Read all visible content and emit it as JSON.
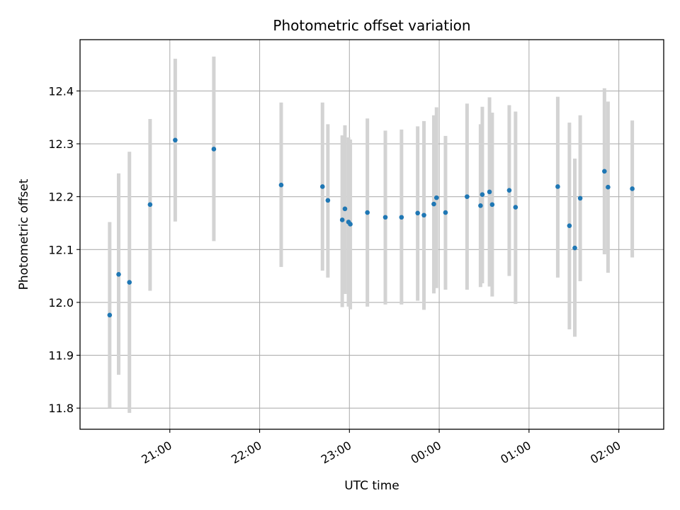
{
  "chart_data": {
    "type": "scatter",
    "title": "Photometric offset variation",
    "xlabel": "UTC time",
    "ylabel": "Photometric offset",
    "x_unit": "UTC hours (values beyond 24 are after midnight)",
    "xlim": [
      20.0,
      26.5
    ],
    "ylim": [
      11.76,
      12.497
    ],
    "grid": true,
    "x_ticks": [
      {
        "value": 21,
        "label": "21:00"
      },
      {
        "value": 22,
        "label": "22:00"
      },
      {
        "value": 23,
        "label": "23:00"
      },
      {
        "value": 24,
        "label": "00:00"
      },
      {
        "value": 25,
        "label": "01:00"
      },
      {
        "value": 26,
        "label": "02:00"
      }
    ],
    "y_ticks": [
      {
        "value": 11.8,
        "label": "11.8"
      },
      {
        "value": 11.9,
        "label": "11.9"
      },
      {
        "value": 12.0,
        "label": "12.0"
      },
      {
        "value": 12.1,
        "label": "12.1"
      },
      {
        "value": 12.2,
        "label": "12.2"
      },
      {
        "value": 12.3,
        "label": "12.3"
      },
      {
        "value": 12.4,
        "label": "12.4"
      }
    ],
    "colors": {
      "point": "#1f77b4",
      "errorbar": "#d3d3d3",
      "grid": "#b0b0b0"
    },
    "series": [
      {
        "points": [
          {
            "x": 20.33,
            "y": 11.976,
            "lo": 11.8,
            "hi": 12.152
          },
          {
            "x": 20.43,
            "y": 12.053,
            "lo": 11.863,
            "hi": 12.244
          },
          {
            "x": 20.55,
            "y": 12.038,
            "lo": 11.791,
            "hi": 12.285
          },
          {
            "x": 20.78,
            "y": 12.185,
            "lo": 12.022,
            "hi": 12.347
          },
          {
            "x": 21.06,
            "y": 12.307,
            "lo": 12.153,
            "hi": 12.461
          },
          {
            "x": 21.49,
            "y": 12.29,
            "lo": 12.116,
            "hi": 12.465
          },
          {
            "x": 22.24,
            "y": 12.222,
            "lo": 12.067,
            "hi": 12.378
          },
          {
            "x": 22.7,
            "y": 12.219,
            "lo": 12.06,
            "hi": 12.378
          },
          {
            "x": 22.76,
            "y": 12.193,
            "lo": 12.047,
            "hi": 12.337
          },
          {
            "x": 22.92,
            "y": 12.156,
            "lo": 11.991,
            "hi": 12.316
          },
          {
            "x": 22.95,
            "y": 12.177,
            "lo": 12.016,
            "hi": 12.335
          },
          {
            "x": 22.99,
            "y": 12.152,
            "lo": 11.992,
            "hi": 12.312
          },
          {
            "x": 23.01,
            "y": 12.148,
            "lo": 11.987,
            "hi": 12.308
          },
          {
            "x": 23.2,
            "y": 12.17,
            "lo": 11.992,
            "hi": 12.348
          },
          {
            "x": 23.4,
            "y": 12.161,
            "lo": 11.996,
            "hi": 12.325
          },
          {
            "x": 23.58,
            "y": 12.161,
            "lo": 11.996,
            "hi": 12.327
          },
          {
            "x": 23.76,
            "y": 12.169,
            "lo": 12.003,
            "hi": 12.333
          },
          {
            "x": 23.83,
            "y": 12.165,
            "lo": 11.986,
            "hi": 12.343
          },
          {
            "x": 23.94,
            "y": 12.186,
            "lo": 12.017,
            "hi": 12.354
          },
          {
            "x": 23.97,
            "y": 12.198,
            "lo": 12.027,
            "hi": 12.369
          },
          {
            "x": 24.07,
            "y": 12.17,
            "lo": 12.024,
            "hi": 12.315
          },
          {
            "x": 24.31,
            "y": 12.2,
            "lo": 12.024,
            "hi": 12.376
          },
          {
            "x": 24.46,
            "y": 12.183,
            "lo": 12.029,
            "hi": 12.337
          },
          {
            "x": 24.48,
            "y": 12.204,
            "lo": 12.036,
            "hi": 12.37
          },
          {
            "x": 24.56,
            "y": 12.209,
            "lo": 12.03,
            "hi": 12.388
          },
          {
            "x": 24.59,
            "y": 12.185,
            "lo": 12.011,
            "hi": 12.359
          },
          {
            "x": 24.78,
            "y": 12.212,
            "lo": 12.05,
            "hi": 12.373
          },
          {
            "x": 24.85,
            "y": 12.18,
            "lo": 11.997,
            "hi": 12.361
          },
          {
            "x": 25.32,
            "y": 12.219,
            "lo": 12.047,
            "hi": 12.389
          },
          {
            "x": 25.45,
            "y": 12.145,
            "lo": 11.949,
            "hi": 12.34
          },
          {
            "x": 25.51,
            "y": 12.103,
            "lo": 11.935,
            "hi": 12.272
          },
          {
            "x": 25.57,
            "y": 12.197,
            "lo": 12.04,
            "hi": 12.354
          },
          {
            "x": 25.84,
            "y": 12.248,
            "lo": 12.091,
            "hi": 12.405
          },
          {
            "x": 25.88,
            "y": 12.218,
            "lo": 12.056,
            "hi": 12.38
          },
          {
            "x": 26.15,
            "y": 12.215,
            "lo": 12.085,
            "hi": 12.344
          }
        ]
      }
    ]
  }
}
